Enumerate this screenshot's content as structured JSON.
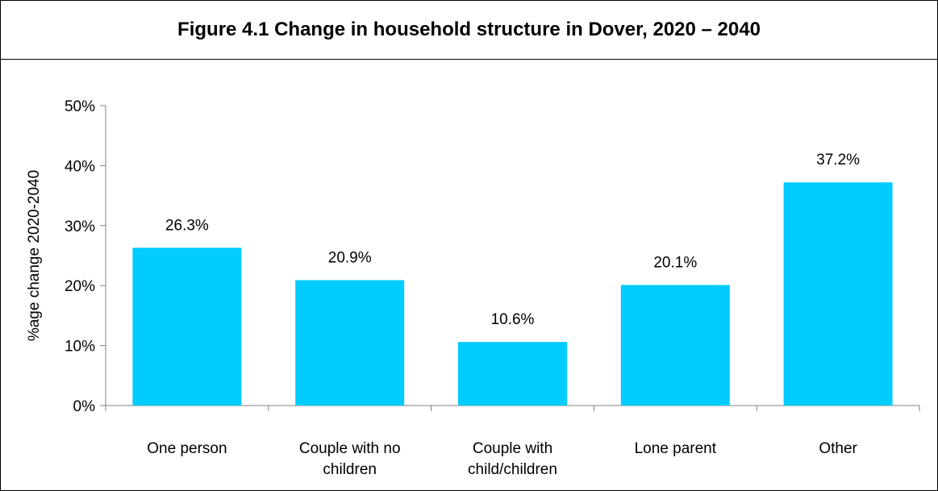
{
  "colors": {
    "bar": "#00CCFF",
    "axis": "#808080"
  },
  "chart_data": {
    "type": "bar",
    "title": "Figure 4.1 Change in household structure in Dover, 2020 – 2040",
    "xlabel": "",
    "ylabel": "%age change 2020-2040",
    "categories": [
      [
        "One person"
      ],
      [
        "Couple with no",
        "children"
      ],
      [
        "Couple with",
        "child/children"
      ],
      [
        "Lone parent"
      ],
      [
        "Other"
      ]
    ],
    "values": [
      26.3,
      20.9,
      10.6,
      20.1,
      37.2
    ],
    "data_labels": [
      "26.3%",
      "20.9%",
      "10.6%",
      "20.1%",
      "37.2%"
    ],
    "ylim": [
      0,
      50
    ],
    "yticks": [
      0,
      10,
      20,
      30,
      40,
      50
    ],
    "ytick_labels": [
      "0%",
      "10%",
      "20%",
      "30%",
      "40%",
      "50%"
    ],
    "grid": false,
    "legend": "none"
  }
}
